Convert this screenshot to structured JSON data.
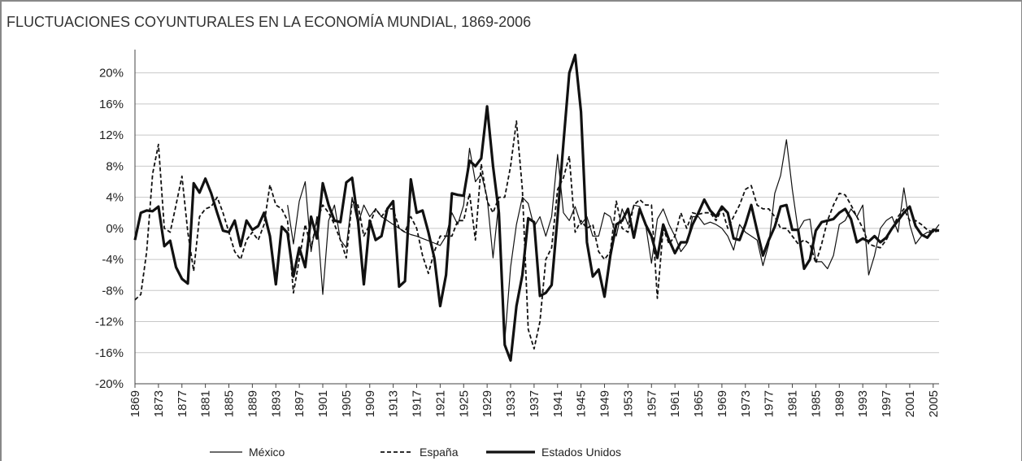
{
  "chart_data": {
    "type": "line",
    "title": "FLUCTUACIONES COYUNTURALES EN LA ECONOMÍA MUNDIAL, 1869-2006",
    "x": [
      1869,
      1870,
      1871,
      1872,
      1873,
      1874,
      1875,
      1876,
      1877,
      1878,
      1879,
      1880,
      1881,
      1882,
      1883,
      1884,
      1885,
      1886,
      1887,
      1888,
      1889,
      1890,
      1891,
      1892,
      1893,
      1894,
      1895,
      1896,
      1897,
      1898,
      1899,
      1900,
      1901,
      1902,
      1903,
      1904,
      1905,
      1906,
      1907,
      1908,
      1909,
      1910,
      1911,
      1912,
      1913,
      1914,
      1915,
      1916,
      1917,
      1918,
      1919,
      1920,
      1921,
      1922,
      1923,
      1924,
      1925,
      1926,
      1927,
      1928,
      1929,
      1930,
      1931,
      1932,
      1933,
      1934,
      1935,
      1936,
      1937,
      1938,
      1939,
      1940,
      1941,
      1942,
      1943,
      1944,
      1945,
      1946,
      1947,
      1948,
      1949,
      1950,
      1951,
      1952,
      1953,
      1954,
      1955,
      1956,
      1957,
      1958,
      1959,
      1960,
      1961,
      1962,
      1963,
      1964,
      1965,
      1966,
      1967,
      1968,
      1969,
      1970,
      1971,
      1972,
      1973,
      1974,
      1975,
      1976,
      1977,
      1978,
      1979,
      1980,
      1981,
      1982,
      1983,
      1984,
      1985,
      1986,
      1987,
      1988,
      1989,
      1990,
      1991,
      1992,
      1993,
      1994,
      1995,
      1996,
      1997,
      1998,
      1999,
      2000,
      2001,
      2002,
      2003,
      2004,
      2005,
      2006
    ],
    "xlim": [
      1869,
      2006
    ],
    "xticks": [
      1869,
      1873,
      1877,
      1881,
      1885,
      1889,
      1893,
      1897,
      1901,
      1905,
      1909,
      1913,
      1917,
      1921,
      1925,
      1929,
      1933,
      1937,
      1941,
      1945,
      1949,
      1953,
      1957,
      1961,
      1965,
      1969,
      1973,
      1977,
      1981,
      1985,
      1989,
      1993,
      1997,
      2001,
      2005
    ],
    "ylim": [
      -20,
      23
    ],
    "yticks": [
      {
        "value": -20,
        "label": "-20%"
      },
      {
        "value": -16,
        "label": "-16%"
      },
      {
        "value": -12,
        "label": "-12%"
      },
      {
        "value": -8,
        "label": "-8%"
      },
      {
        "value": -4,
        "label": "-4%"
      },
      {
        "value": 0,
        "label": "0%"
      },
      {
        "value": 4,
        "label": "4%"
      },
      {
        "value": 8,
        "label": "8%"
      },
      {
        "value": 12,
        "label": "12%"
      },
      {
        "value": 16,
        "label": "16%"
      },
      {
        "value": 20,
        "label": "20%"
      }
    ],
    "grid": true,
    "legend": "bottom",
    "series": [
      {
        "name": "México",
        "color": "#111111",
        "style": "thin",
        "values": [
          null,
          null,
          null,
          null,
          null,
          null,
          null,
          null,
          null,
          null,
          null,
          null,
          null,
          null,
          null,
          null,
          null,
          null,
          null,
          null,
          null,
          null,
          null,
          null,
          null,
          null,
          3,
          -2,
          3.5,
          6,
          -3,
          1.5,
          -8.5,
          1,
          3,
          -1.5,
          -2.5,
          4,
          0.5,
          3,
          1.5,
          2.5,
          1.5,
          1,
          0.5,
          0,
          -0.5,
          -0.8,
          -1,
          -1.3,
          -1.6,
          -1.9,
          -2.2,
          -1,
          2,
          0.5,
          3,
          10.3,
          6,
          7,
          4,
          -3.8,
          3.5,
          -14.5,
          -5,
          0.5,
          4,
          3.2,
          0.2,
          1.5,
          -1,
          1.5,
          9.5,
          2,
          1,
          2.8,
          0.5,
          1.5,
          -1,
          -1,
          2,
          1.5,
          -1,
          2.5,
          0.5,
          3,
          2.8,
          0.5,
          -4.5,
          1.2,
          2.5,
          0.5,
          -1,
          -3,
          -2,
          1.5,
          1.5,
          0.5,
          0.8,
          0.5,
          0,
          -1,
          -2.8,
          0.5,
          -0.5,
          -1,
          -1.5,
          -4.8,
          -2,
          4.5,
          6.8,
          11.4,
          5,
          -0.3,
          1,
          1.2,
          -4.3,
          -4.3,
          -5.2,
          -3.5,
          0.5,
          1,
          2.5,
          1.5,
          3,
          -6,
          -3.5,
          0,
          1,
          1.5,
          -0.5,
          5.2,
          0.5,
          -2,
          -1,
          -0.5,
          -0.5,
          0.5
        ]
      },
      {
        "name": "España",
        "color": "#111111",
        "style": "dashed",
        "values": [
          -9.2,
          -8.5,
          -3,
          7,
          10.8,
          0,
          -0.5,
          3,
          6.7,
          -0.5,
          -5.5,
          1.5,
          2.5,
          2.8,
          4,
          2,
          -0.5,
          -3,
          -4,
          -1.5,
          -0.5,
          -1.5,
          0.5,
          5.6,
          3,
          2.5,
          1,
          -8.3,
          -4,
          0.5,
          -2.5,
          1,
          3,
          2,
          0.5,
          -1.5,
          -3.8,
          3.5,
          3,
          -1,
          0.5,
          2.5,
          1.5,
          2.5,
          2.5,
          0,
          -0.5,
          1.5,
          0,
          -3.5,
          -5.8,
          -3,
          -1,
          -1,
          -1,
          1,
          1,
          4.5,
          -1.5,
          8.3,
          3.5,
          2,
          4,
          4,
          8,
          13.8,
          5,
          -13,
          -15.5,
          -12,
          -4,
          -2.5,
          5,
          6.5,
          9.3,
          -0.5,
          1,
          0,
          0.5,
          -3,
          -4,
          -3,
          3.5,
          0,
          -0.5,
          3,
          3.7,
          3,
          3,
          -9,
          0,
          -2,
          -1,
          2,
          0,
          2,
          1.8,
          2,
          2,
          1,
          2.5,
          0,
          1.5,
          3,
          5,
          5.5,
          3,
          2.5,
          2.5,
          1.5,
          0,
          0,
          -1,
          -2,
          -1.5,
          -2,
          -4.5,
          -2,
          1,
          3,
          4.5,
          4.3,
          3,
          1.5,
          0,
          -2,
          -2.3,
          -2.5,
          -1.5,
          0,
          1.5,
          2.5,
          1,
          1,
          0.5,
          -0.2,
          -0.5,
          -0.3
        ]
      },
      {
        "name": "Estados Unidos",
        "color": "#111111",
        "style": "thick",
        "values": [
          -1.5,
          2,
          2.3,
          2.2,
          2.8,
          -2.3,
          -1.6,
          -5,
          -6.5,
          -7.1,
          5.8,
          4.6,
          6.4,
          4.5,
          2,
          -0.3,
          -0.5,
          1,
          -2.3,
          1,
          -0.2,
          0.3,
          2,
          -1,
          -7.2,
          0.2,
          -0.6,
          -6.2,
          -2.5,
          -5,
          1.5,
          -1.3,
          5.8,
          3,
          1,
          0.8,
          5.9,
          6.5,
          1,
          -7.2,
          1,
          -1.5,
          -1,
          2.5,
          3.5,
          -7.5,
          -6.8,
          6.3,
          2,
          2.3,
          -0.5,
          -3.8,
          -10,
          -6,
          4.5,
          4.3,
          4.2,
          8.7,
          8,
          9,
          15.7,
          8,
          2,
          -15,
          -17,
          -10,
          -6,
          1.3,
          0.8,
          -8.7,
          -8.3,
          -7.3,
          1.5,
          11,
          20,
          22.3,
          15,
          -1.8,
          -6.2,
          -5.3,
          -8.8,
          -3.5,
          0.5,
          1,
          2.5,
          -1.2,
          2.5,
          0.5,
          -1,
          -3.8,
          0.5,
          -1.5,
          -3.2,
          -1.8,
          -1.8,
          0.5,
          2,
          3.7,
          2.3,
          1.5,
          2.8,
          2,
          -1.3,
          -1.5,
          0.5,
          3,
          -0.3,
          -3.5,
          -1.5,
          0.2,
          2.8,
          3,
          -0.2,
          -0.2,
          -5.2,
          -4,
          -0.3,
          0.8,
          1,
          1.2,
          2,
          2.5,
          1.2,
          -1.8,
          -1.3,
          -1.7,
          -1,
          -1.8,
          -1.2,
          0,
          1,
          2,
          2.8,
          0.3,
          -0.8,
          -1.2,
          -0.2,
          -0.3
        ]
      }
    ]
  }
}
